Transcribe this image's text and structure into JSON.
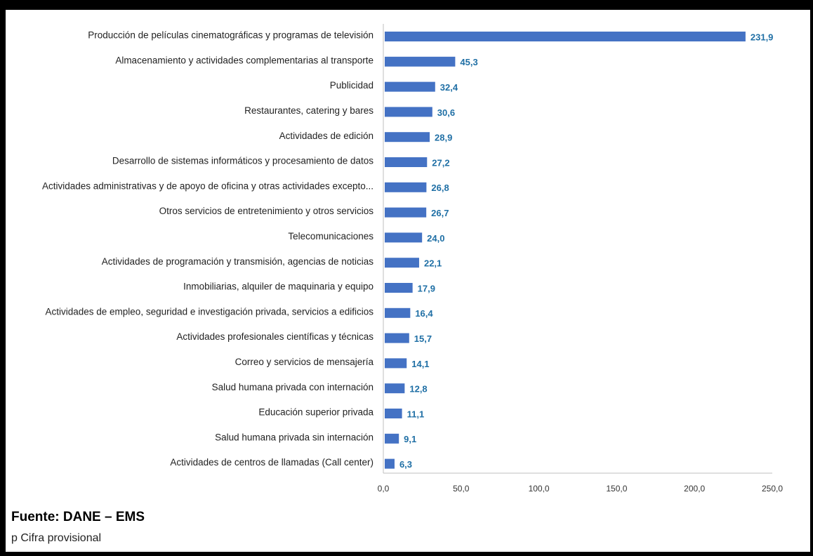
{
  "chart_data": {
    "type": "bar",
    "orientation": "horizontal",
    "categories": [
      "Producción de películas cinematográficas y programas de televisión",
      "Almacenamiento y actividades complementarias al transporte",
      "Publicidad",
      "Restaurantes, catering y bares",
      "Actividades de edición",
      "Desarrollo de sistemas informáticos y procesamiento de datos",
      "Actividades administrativas y de apoyo de oficina y otras actividades excepto...",
      "Otros servicios de entretenimiento y otros servicios",
      "Telecomunicaciones",
      "Actividades de programación y transmisión,  agencias de noticias",
      "Inmobiliarias, alquiler de maquinaria y equipo",
      "Actividades de empleo, seguridad e investigación privada, servicios a edificios",
      "Actividades profesionales científicas y técnicas",
      "Correo y servicios de mensajería",
      "Salud humana privada con internación",
      "Educación superior privada",
      "Salud humana privada sin internación",
      "Actividades de centros de llamadas (Call center)"
    ],
    "values": [
      231.9,
      45.3,
      32.4,
      30.6,
      28.9,
      27.2,
      26.8,
      26.7,
      24.0,
      22.1,
      17.9,
      16.4,
      15.7,
      14.1,
      12.8,
      11.1,
      9.1,
      6.3
    ],
    "value_labels": [
      "231,9",
      "45,3",
      "32,4",
      "30,6",
      "28,9",
      "27,2",
      "26,8",
      "26,7",
      "24,0",
      "22,1",
      "17,9",
      "16,4",
      "15,7",
      "14,1",
      "12,8",
      "11,1",
      "9,1",
      "6,3"
    ],
    "x_ticks": [
      "0,0",
      "50,0",
      "100,0",
      "150,0",
      "200,0",
      "250,0"
    ],
    "x_tick_values": [
      0,
      50,
      100,
      150,
      200,
      250
    ],
    "xlim": [
      0,
      250
    ],
    "grid": false,
    "legend": "none",
    "bar_color": "#4472c4",
    "label_color": "#1f6fa5"
  },
  "footer": {
    "source": "Fuente: DANE – EMS",
    "note": "p Cifra provisional"
  }
}
